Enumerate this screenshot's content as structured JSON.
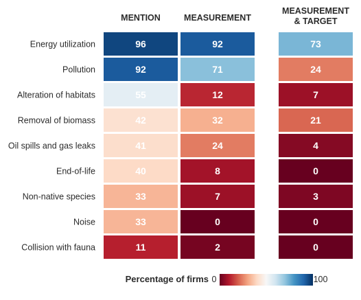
{
  "chart_data": {
    "type": "heatmap",
    "columns": [
      "MENTION",
      "MEASUREMENT",
      "MEASUREMENT\n& TARGET"
    ],
    "rows": [
      "Energy utilization",
      "Pollution",
      "Alteration of habitats",
      "Removal of biomass",
      "Oil spills and gas leaks",
      "End-of-life",
      "Non-native species",
      "Noise",
      "Collision with fauna"
    ],
    "values": [
      [
        96,
        92,
        73
      ],
      [
        92,
        71,
        24
      ],
      [
        55,
        12,
        7
      ],
      [
        42,
        32,
        21
      ],
      [
        41,
        24,
        4
      ],
      [
        40,
        8,
        0
      ],
      [
        33,
        7,
        3
      ],
      [
        33,
        0,
        0
      ],
      [
        11,
        2,
        0
      ]
    ],
    "colorbar": {
      "title": "Percentage of firms",
      "min": 0,
      "max": 100,
      "min_label": "0",
      "max_label": "100",
      "colors": [
        "#67001f",
        "#b2182b",
        "#d6604d",
        "#f4a582",
        "#fddbc7",
        "#f7f7f7",
        "#d1e5f0",
        "#92c5de",
        "#4393c3",
        "#2166ac",
        "#053061"
      ]
    }
  }
}
